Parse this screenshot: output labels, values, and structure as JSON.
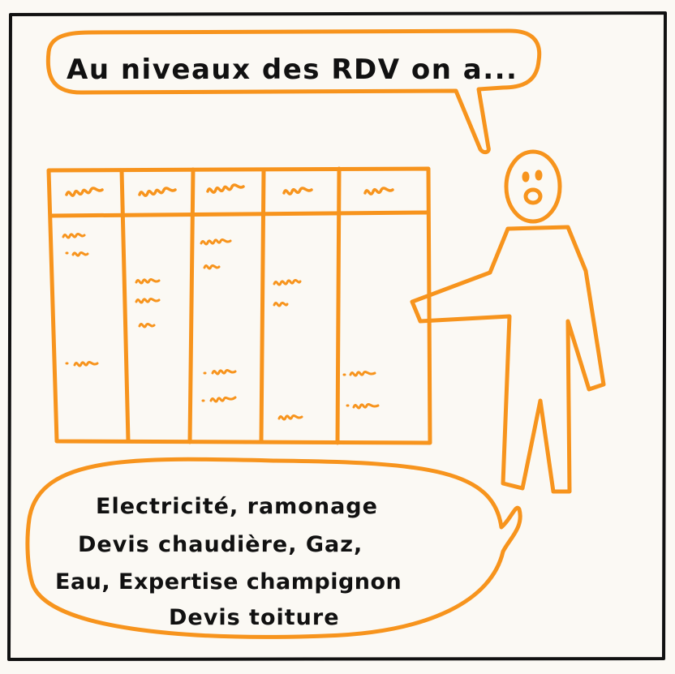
{
  "colors": {
    "ink": "#111111",
    "orange": "#f7941d",
    "paper": "#fbf9f4"
  },
  "top_bubble": {
    "text": "Au niveaux des RDV on a..."
  },
  "bottom_bubble": {
    "lines": [
      "Electricité, ramonage",
      "Devis chaudière, Gaz,",
      "Eau, Expertise champignon",
      "Devis toiture"
    ]
  },
  "board": {
    "columns": 5
  },
  "character": {
    "icon": "stick-figure-icon"
  }
}
